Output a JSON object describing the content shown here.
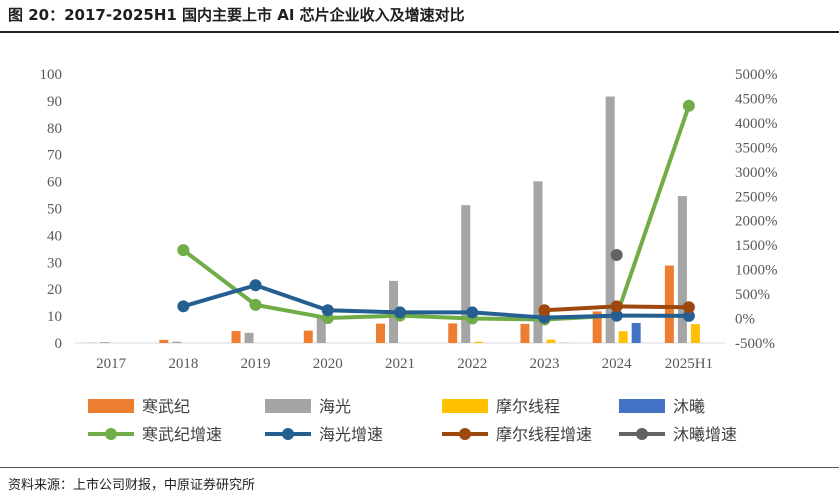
{
  "title": "图 20：2017-2025H1 国内主要上市 AI 芯片企业收入及增速对比",
  "source": "资料来源：上市公司财报，中原证券研究所",
  "chart_data": {
    "type": "bar",
    "categories": [
      "2017",
      "2018",
      "2019",
      "2020",
      "2021",
      "2022",
      "2023",
      "2024",
      "2025H1"
    ],
    "ylim": [
      0,
      100
    ],
    "y_ticks": [
      "0",
      "10",
      "20",
      "30",
      "40",
      "50",
      "60",
      "70",
      "80",
      "90",
      "100"
    ],
    "y2lim": [
      -500,
      5000
    ],
    "y2_ticks": [
      "-500%",
      "0%",
      "500%",
      "1000%",
      "1500%",
      "2000%",
      "2500%",
      "3000%",
      "3500%",
      "4000%",
      "4500%",
      "5000%"
    ],
    "grid": false,
    "legend_position": "bottom",
    "bar_series": [
      {
        "name": "寒武纪",
        "color": "#ED7D31",
        "values": [
          0.08,
          1.17,
          4.44,
          4.59,
          7.21,
          7.29,
          7.09,
          11.74,
          28.8
        ]
      },
      {
        "name": "海光",
        "color": "#A5A5A5",
        "values": [
          0.35,
          0.49,
          3.79,
          10.22,
          23.1,
          51.25,
          60.12,
          91.62,
          54.6
        ]
      },
      {
        "name": "摩尔线程",
        "color": "#FFC000",
        "values": [
          null,
          null,
          null,
          0.0,
          0.0,
          0.46,
          1.24,
          4.38,
          7.02
        ]
      },
      {
        "name": "沐曦",
        "color": "#4472C4",
        "values": [
          null,
          null,
          null,
          null,
          0.0,
          0.0,
          0.05,
          7.43,
          null
        ]
      }
    ],
    "line_series": [
      {
        "name": "寒武纪增速",
        "color": "#70AD47",
        "values": [
          null,
          1400,
          280,
          10,
          60,
          0,
          -20,
          60,
          4350
        ]
      },
      {
        "name": "海光增速",
        "color": "#255E91",
        "values": [
          null,
          250,
          680,
          170,
          125,
          125,
          20,
          60,
          55
        ]
      },
      {
        "name": "摩尔线程增速",
        "color": "#9E480E",
        "values": [
          null,
          null,
          null,
          null,
          null,
          null,
          170,
          250,
          230
        ]
      },
      {
        "name": "沐曦增速",
        "color": "#636363",
        "values": [
          null,
          null,
          null,
          null,
          null,
          null,
          null,
          1300,
          null
        ]
      }
    ]
  }
}
